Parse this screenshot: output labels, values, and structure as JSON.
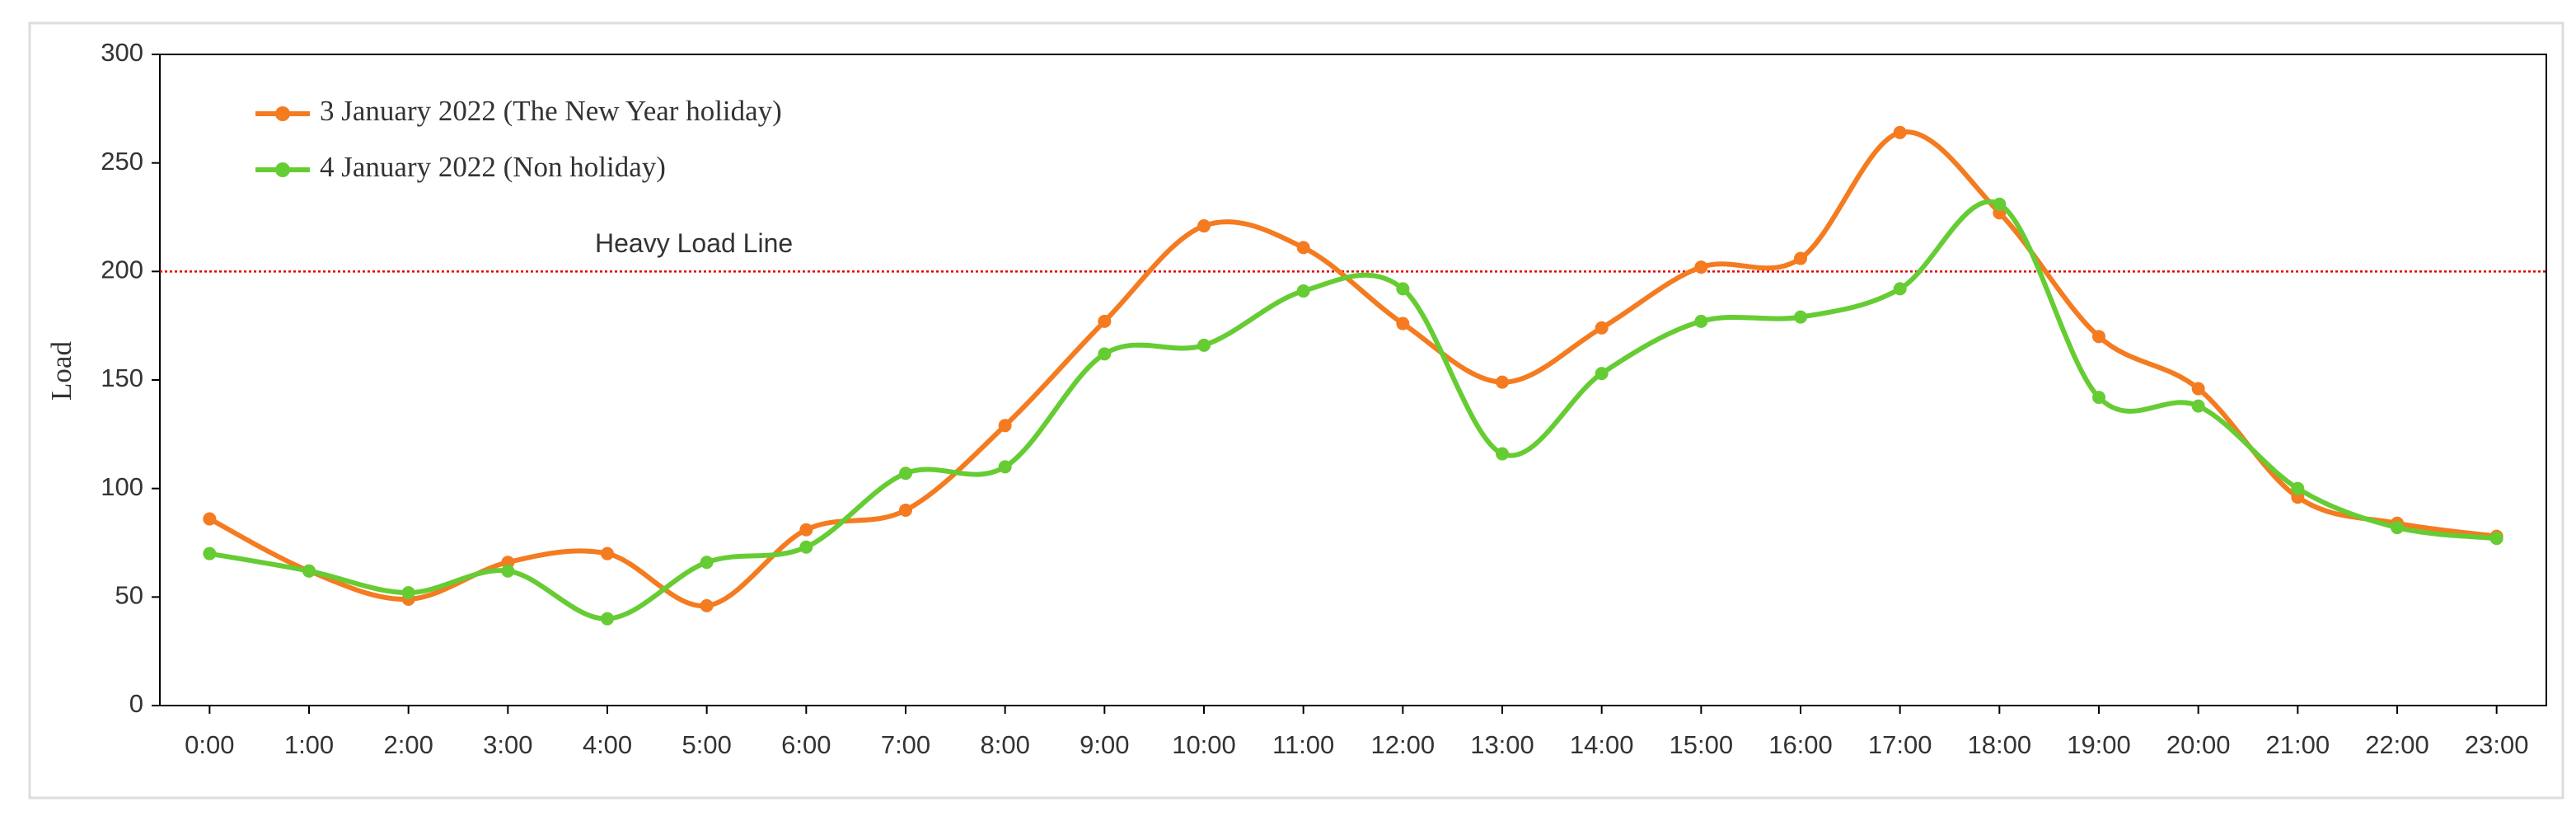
{
  "chart_data": {
    "type": "line",
    "y_label": "Load",
    "categories": [
      "0:00",
      "1:00",
      "2:00",
      "3:00",
      "4:00",
      "5:00",
      "6:00",
      "7:00",
      "8:00",
      "9:00",
      "10:00",
      "11:00",
      "12:00",
      "13:00",
      "14:00",
      "15:00",
      "16:00",
      "17:00",
      "18:00",
      "19:00",
      "20:00",
      "21:00",
      "22:00",
      "23:00"
    ],
    "series": [
      {
        "name": "3 January 2022 (The New Year holiday)",
        "color": "#f47b20",
        "values": [
          86,
          62,
          49,
          66,
          70,
          46,
          81,
          90,
          129,
          177,
          221,
          211,
          176,
          149,
          174,
          202,
          206,
          264,
          227,
          170,
          146,
          96,
          84,
          78
        ]
      },
      {
        "name": "4 January 2022 (Non holiday)",
        "color": "#66cc33",
        "values": [
          70,
          62,
          52,
          62,
          40,
          66,
          73,
          107,
          110,
          162,
          166,
          191,
          192,
          116,
          153,
          177,
          179,
          192,
          231,
          142,
          138,
          100,
          82,
          77
        ]
      }
    ],
    "reference_line": {
      "value": 200,
      "label": "Heavy Load Line",
      "color": "#e00000"
    },
    "ylim": [
      0,
      300
    ],
    "yticks": [
      0,
      50,
      100,
      150,
      200,
      250,
      300
    ],
    "legend": "upper left",
    "smooth": true
  }
}
